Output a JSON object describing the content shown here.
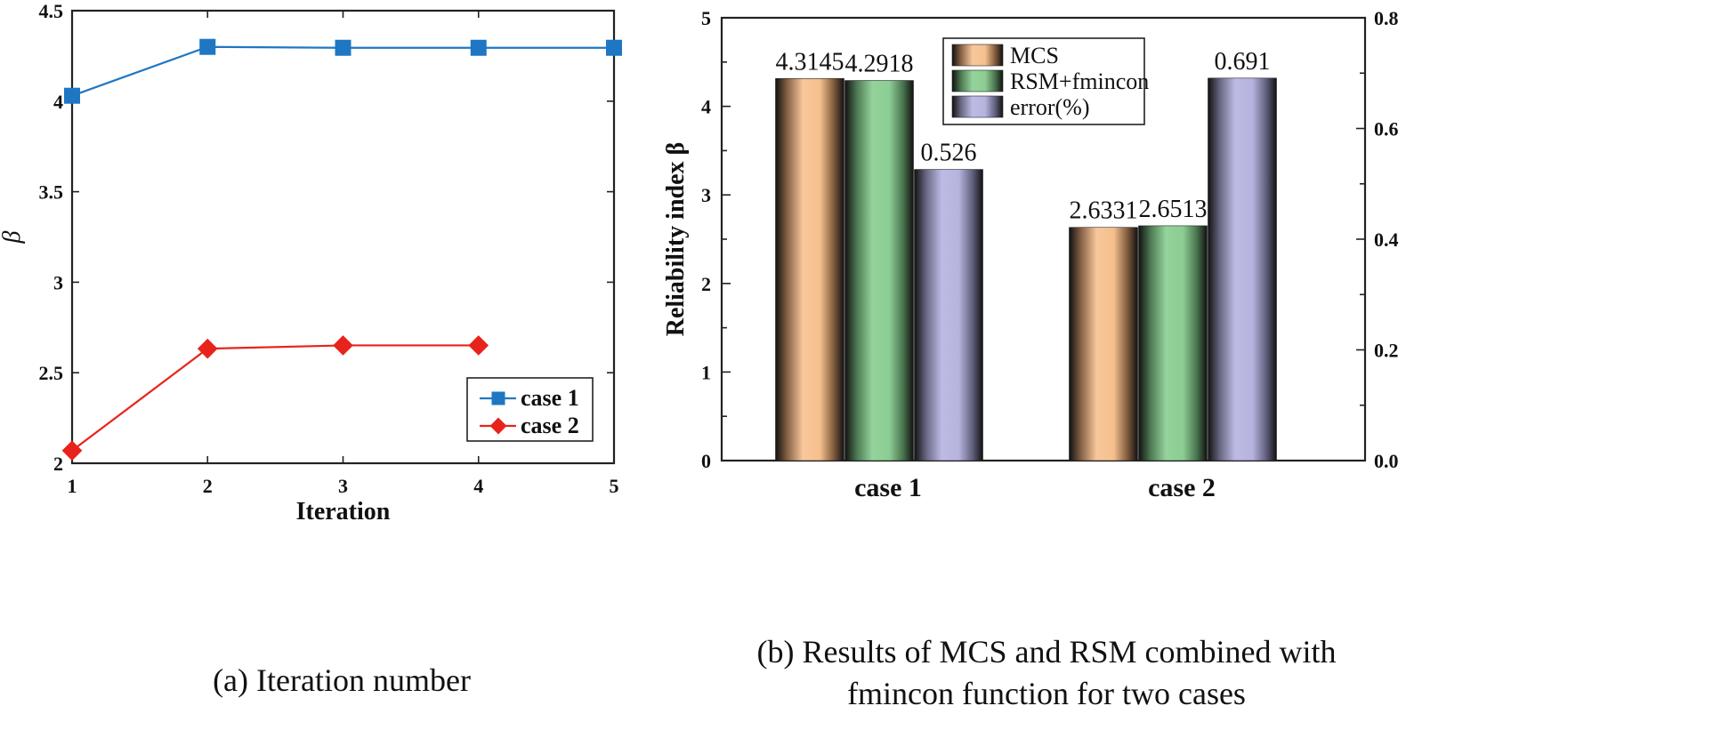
{
  "chart_data": [
    {
      "type": "line",
      "title": "",
      "xlabel": "Iteration",
      "ylabel": "β",
      "xlim": [
        1,
        5
      ],
      "ylim": [
        2,
        4.5
      ],
      "xticks": [
        "1",
        "2",
        "3",
        "4",
        "5"
      ],
      "yticks": [
        "2",
        "2.5",
        "3",
        "3.5",
        "4",
        "4.5"
      ],
      "legend_position": "bottom-right",
      "series": [
        {
          "name": "case 1",
          "color": "#1f77c3",
          "marker": "square",
          "x": [
            1,
            2,
            3,
            4,
            5
          ],
          "values": [
            4.03,
            4.3,
            4.295,
            4.295,
            4.295
          ]
        },
        {
          "name": "case 2",
          "color": "#e8231b",
          "marker": "diamond",
          "x": [
            1,
            2,
            3,
            4
          ],
          "values": [
            2.07,
            2.633,
            2.651,
            2.651
          ]
        }
      ],
      "caption": "(a) Iteration number"
    },
    {
      "type": "bar",
      "title": "",
      "ylabel": "Reliability index β",
      "y2label": "",
      "categories": [
        "case 1",
        "case 2"
      ],
      "ylim": [
        0,
        5
      ],
      "y2lim": [
        0,
        0.8
      ],
      "yticks": [
        "0",
        "1",
        "2",
        "3",
        "4",
        "5"
      ],
      "y2ticks": [
        "0.0",
        "0.2",
        "0.4",
        "0.6",
        "0.8"
      ],
      "legend_position": "top-center",
      "series": [
        {
          "name": "MCS",
          "axis": "left",
          "color": "#f7c596",
          "values": [
            4.3145,
            2.6331
          ],
          "labels": [
            "4.3145",
            "2.6331"
          ]
        },
        {
          "name": "RSM+fmincon",
          "axis": "left",
          "color": "#8fd195",
          "values": [
            4.2918,
            2.6513
          ],
          "labels": [
            "4.2918",
            "2.6513"
          ]
        },
        {
          "name": "error(%)",
          "axis": "right",
          "color": "#b9b7e0",
          "values": [
            0.526,
            0.691
          ],
          "labels": [
            "0.526",
            "0.691"
          ]
        }
      ],
      "caption_lines": [
        "(b) Results of MCS and RSM combined with",
        "fmincon function for two cases"
      ]
    }
  ]
}
